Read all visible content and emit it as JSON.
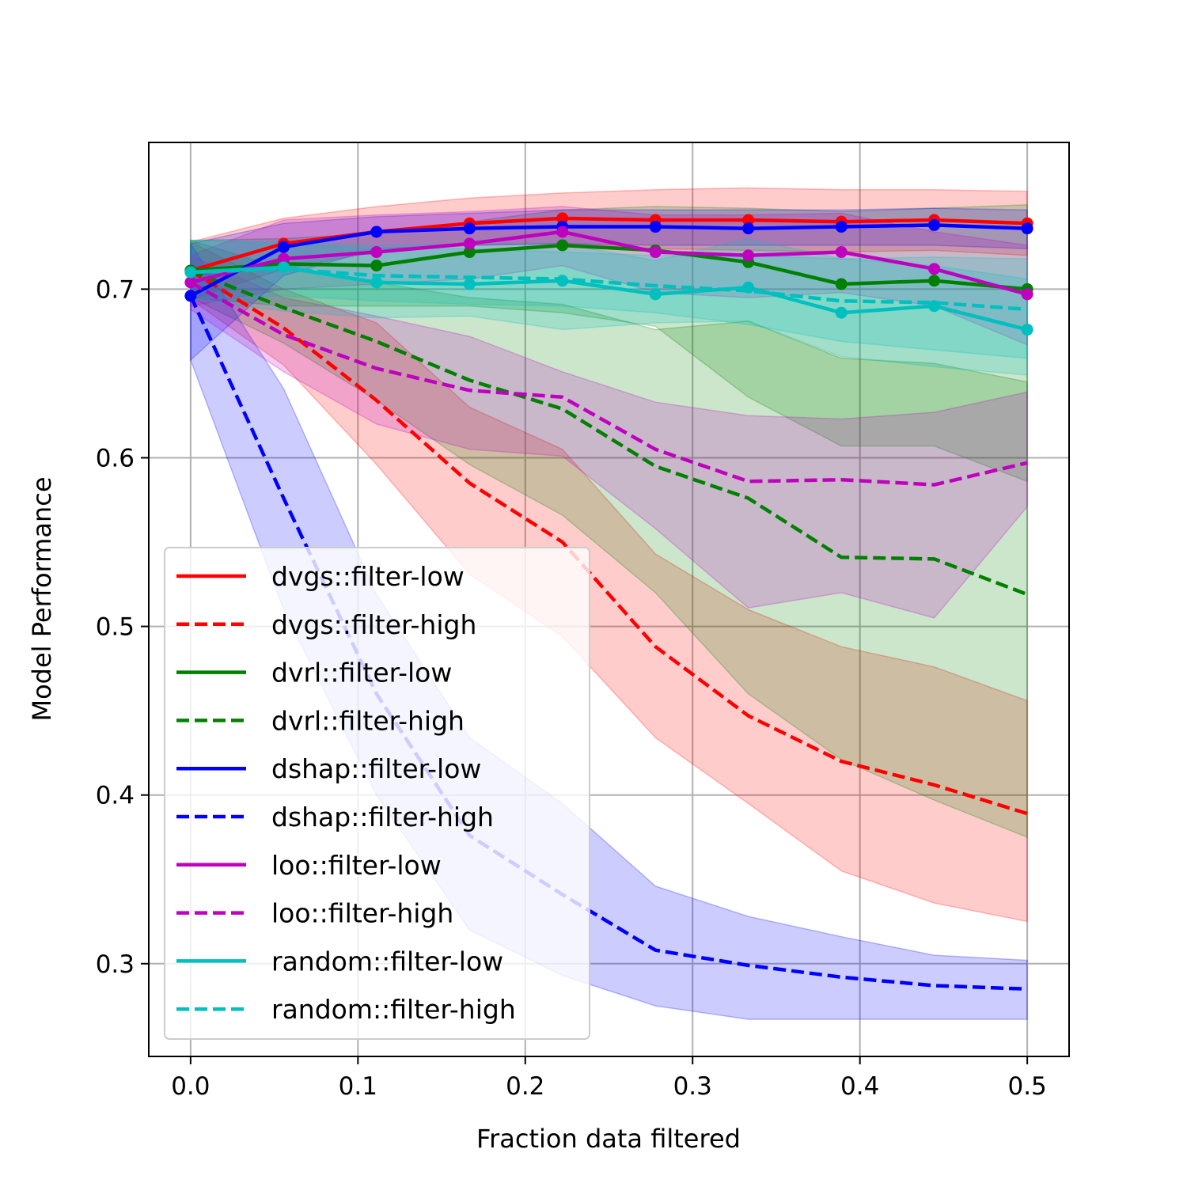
{
  "chart_data": {
    "type": "line",
    "xlabel": "Fraction data filtered",
    "ylabel": "Model Performance",
    "xlim": [
      -0.025,
      0.525
    ],
    "ylim": [
      0.245,
      0.787
    ],
    "xticks": [
      0.0,
      0.1,
      0.2,
      0.3,
      0.4,
      0.5
    ],
    "xtick_labels": [
      "0.0",
      "0.1",
      "0.2",
      "0.3",
      "0.4",
      "0.5"
    ],
    "yticks": [
      0.3,
      0.4,
      0.5,
      0.6,
      0.7
    ],
    "ytick_labels": [
      "0.3",
      "0.4",
      "0.5",
      "0.6",
      "0.7"
    ],
    "grid": true,
    "legend_position": "lower-left",
    "x": [
      0.0,
      0.0556,
      0.1111,
      0.1667,
      0.2222,
      0.2778,
      0.3333,
      0.3889,
      0.4444,
      0.5
    ],
    "series": [
      {
        "name": "dvgs::filter-low",
        "color": "#ff0000",
        "style": "solid",
        "markers": true,
        "values": [
          0.711,
          0.727,
          0.734,
          0.739,
          0.742,
          0.741,
          0.741,
          0.74,
          0.741,
          0.739
        ],
        "lower": [
          0.694,
          0.712,
          0.722,
          0.726,
          0.727,
          0.724,
          0.723,
          0.722,
          0.723,
          0.72
        ],
        "upper": [
          0.728,
          0.742,
          0.749,
          0.754,
          0.757,
          0.759,
          0.76,
          0.759,
          0.759,
          0.758
        ]
      },
      {
        "name": "dvgs::filter-high",
        "color": "#ff0000",
        "style": "dashed",
        "markers": false,
        "values": [
          0.711,
          0.677,
          0.634,
          0.585,
          0.55,
          0.488,
          0.447,
          0.42,
          0.406,
          0.389
        ],
        "lower": [
          0.694,
          0.655,
          0.596,
          0.531,
          0.494,
          0.434,
          0.395,
          0.355,
          0.336,
          0.325
        ],
        "upper": [
          0.728,
          0.7,
          0.68,
          0.63,
          0.605,
          0.543,
          0.51,
          0.488,
          0.476,
          0.456
        ]
      },
      {
        "name": "dvrl::filter-low",
        "color": "#008000",
        "style": "solid",
        "markers": true,
        "values": [
          0.711,
          0.715,
          0.714,
          0.722,
          0.726,
          0.723,
          0.716,
          0.703,
          0.705,
          0.7
        ],
        "lower": [
          0.695,
          0.69,
          0.69,
          0.69,
          0.686,
          0.678,
          0.636,
          0.607,
          0.607,
          0.586
        ],
        "upper": [
          0.729,
          0.73,
          0.733,
          0.74,
          0.747,
          0.749,
          0.748,
          0.746,
          0.748,
          0.75
        ]
      },
      {
        "name": "dvrl::filter-high",
        "color": "#008000",
        "style": "dashed",
        "markers": false,
        "values": [
          0.711,
          0.689,
          0.669,
          0.646,
          0.629,
          0.595,
          0.576,
          0.541,
          0.54,
          0.519
        ],
        "lower": [
          0.695,
          0.668,
          0.634,
          0.596,
          0.566,
          0.52,
          0.46,
          0.421,
          0.397,
          0.375
        ],
        "upper": [
          0.729,
          0.712,
          0.704,
          0.695,
          0.691,
          0.676,
          0.681,
          0.659,
          0.656,
          0.645
        ]
      },
      {
        "name": "dshap::filter-low",
        "color": "#0000ff",
        "style": "solid",
        "markers": true,
        "values": [
          0.696,
          0.725,
          0.734,
          0.736,
          0.737,
          0.737,
          0.736,
          0.737,
          0.738,
          0.736
        ],
        "lower": [
          0.658,
          0.708,
          0.724,
          0.726,
          0.727,
          0.726,
          0.726,
          0.726,
          0.726,
          0.724
        ],
        "upper": [
          0.727,
          0.739,
          0.743,
          0.745,
          0.747,
          0.747,
          0.747,
          0.747,
          0.748,
          0.747
        ]
      },
      {
        "name": "dshap::filter-high",
        "color": "#0000ff",
        "style": "dashed",
        "markers": false,
        "values": [
          0.696,
          0.576,
          0.46,
          0.376,
          0.341,
          0.308,
          0.299,
          0.292,
          0.287,
          0.285
        ],
        "lower": [
          0.658,
          0.51,
          0.4,
          0.32,
          0.293,
          0.275,
          0.267,
          0.267,
          0.267,
          0.267
        ],
        "upper": [
          0.727,
          0.641,
          0.519,
          0.434,
          0.395,
          0.346,
          0.328,
          0.316,
          0.305,
          0.302
        ]
      },
      {
        "name": "loo::filter-low",
        "color": "#bf00bf",
        "style": "solid",
        "markers": true,
        "values": [
          0.704,
          0.718,
          0.722,
          0.727,
          0.734,
          0.722,
          0.72,
          0.722,
          0.712,
          0.697
        ],
        "lower": [
          0.69,
          0.7,
          0.703,
          0.706,
          0.714,
          0.698,
          0.695,
          0.698,
          0.69,
          0.667
        ],
        "upper": [
          0.72,
          0.741,
          0.744,
          0.746,
          0.749,
          0.744,
          0.744,
          0.745,
          0.734,
          0.726
        ]
      },
      {
        "name": "loo::filter-high",
        "color": "#bf00bf",
        "style": "dashed",
        "markers": false,
        "values": [
          0.704,
          0.673,
          0.653,
          0.64,
          0.636,
          0.605,
          0.586,
          0.587,
          0.584,
          0.597
        ],
        "lower": [
          0.688,
          0.651,
          0.62,
          0.605,
          0.601,
          0.558,
          0.511,
          0.52,
          0.505,
          0.571
        ],
        "upper": [
          0.72,
          0.695,
          0.684,
          0.672,
          0.651,
          0.633,
          0.625,
          0.623,
          0.627,
          0.639
        ]
      },
      {
        "name": "random::filter-low",
        "color": "#00bfbf",
        "style": "solid",
        "markers": true,
        "values": [
          0.71,
          0.713,
          0.704,
          0.703,
          0.705,
          0.697,
          0.701,
          0.686,
          0.69,
          0.676
        ],
        "lower": [
          0.694,
          0.687,
          0.683,
          0.684,
          0.676,
          0.68,
          0.681,
          0.66,
          0.654,
          0.649
        ],
        "upper": [
          0.729,
          0.728,
          0.726,
          0.727,
          0.727,
          0.717,
          0.73,
          0.718,
          0.714,
          0.706
        ]
      },
      {
        "name": "random::filter-high",
        "color": "#00bfbf",
        "style": "dashed",
        "markers": false,
        "values": [
          0.71,
          0.712,
          0.708,
          0.707,
          0.706,
          0.702,
          0.699,
          0.693,
          0.692,
          0.688
        ],
        "lower": [
          0.694,
          0.696,
          0.693,
          0.691,
          0.69,
          0.686,
          0.679,
          0.669,
          0.664,
          0.659
        ],
        "upper": [
          0.729,
          0.727,
          0.724,
          0.724,
          0.722,
          0.72,
          0.72,
          0.718,
          0.719,
          0.718
        ]
      }
    ]
  }
}
